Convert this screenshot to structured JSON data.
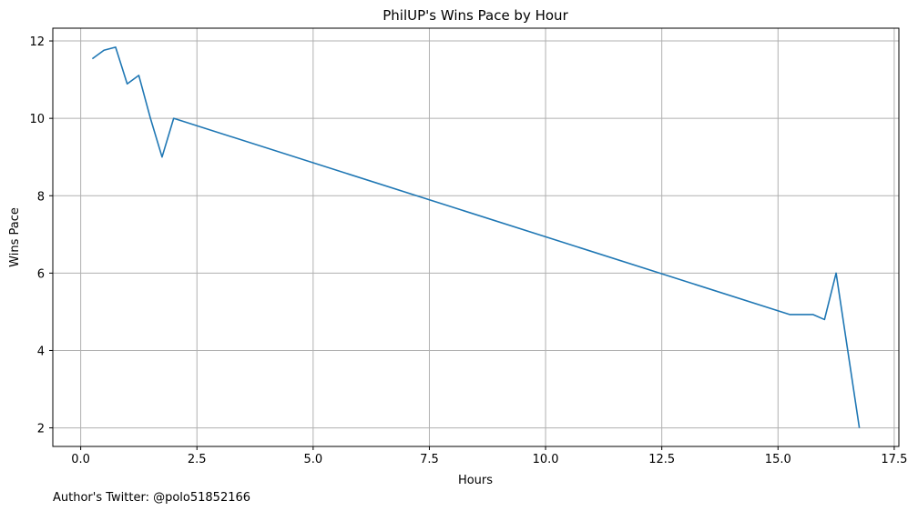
{
  "chart_data": {
    "type": "line",
    "title": "PhilUP's Wins Pace by Hour",
    "xlabel": "Hours",
    "ylabel": "Wins Pace",
    "xlim": [
      -0.6,
      17.6
    ],
    "ylim": [
      1.52,
      12.33
    ],
    "xticks": [
      0,
      2.5,
      5,
      7.5,
      10,
      12.5,
      15,
      17.5
    ],
    "xtick_labels": [
      "0.0",
      "2.5",
      "5.0",
      "7.5",
      "10.0",
      "12.5",
      "15.0",
      "17.5"
    ],
    "yticks": [
      2,
      4,
      6,
      8,
      10,
      12
    ],
    "ytick_labels": [
      "2",
      "4",
      "6",
      "8",
      "10",
      "12"
    ],
    "grid": true,
    "series": [
      {
        "color": "#1f77b4",
        "x": [
          0.25,
          0.5,
          0.75,
          1.0,
          1.25,
          1.5,
          1.75,
          2.0,
          15.25,
          15.5,
          15.75,
          16.0,
          16.25,
          16.75
        ],
        "y": [
          11.54,
          11.76,
          11.84,
          10.89,
          11.11,
          10.0,
          9.0,
          10.0,
          4.93,
          4.93,
          4.93,
          4.8,
          6.0,
          2.0
        ]
      }
    ]
  },
  "footer_text": "Author's Twitter: @polo51852166"
}
